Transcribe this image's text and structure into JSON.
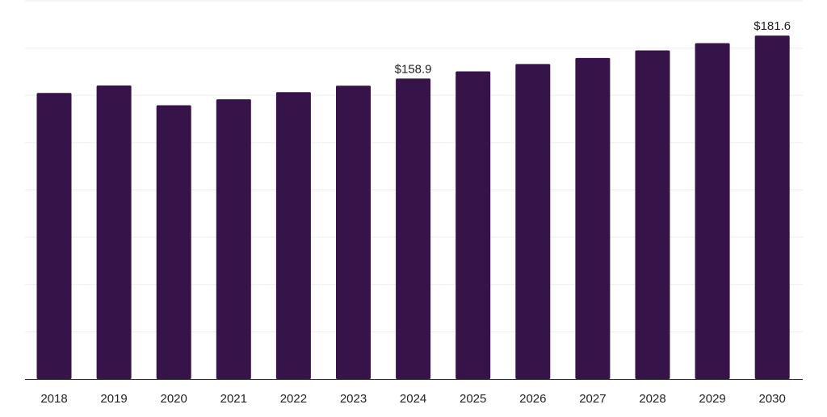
{
  "chart_data": {
    "type": "bar",
    "categories": [
      "2018",
      "2019",
      "2020",
      "2021",
      "2022",
      "2023",
      "2024",
      "2025",
      "2026",
      "2027",
      "2028",
      "2029",
      "2030"
    ],
    "values": [
      151.3,
      155.2,
      144.8,
      147.9,
      151.7,
      155.1,
      158.9,
      162.7,
      166.6,
      169.8,
      173.8,
      177.6,
      181.6
    ],
    "data_labels": [
      null,
      null,
      null,
      null,
      null,
      null,
      "$158.9",
      null,
      null,
      null,
      null,
      null,
      "$181.6"
    ],
    "title": "",
    "xlabel": "",
    "ylabel": "",
    "ylim": [
      0,
      200
    ],
    "grid": true,
    "legend": "none",
    "bar_color": "#361349",
    "grid_color": "#eeeeee",
    "axis_color": "#333333",
    "label_color": "#222222"
  }
}
